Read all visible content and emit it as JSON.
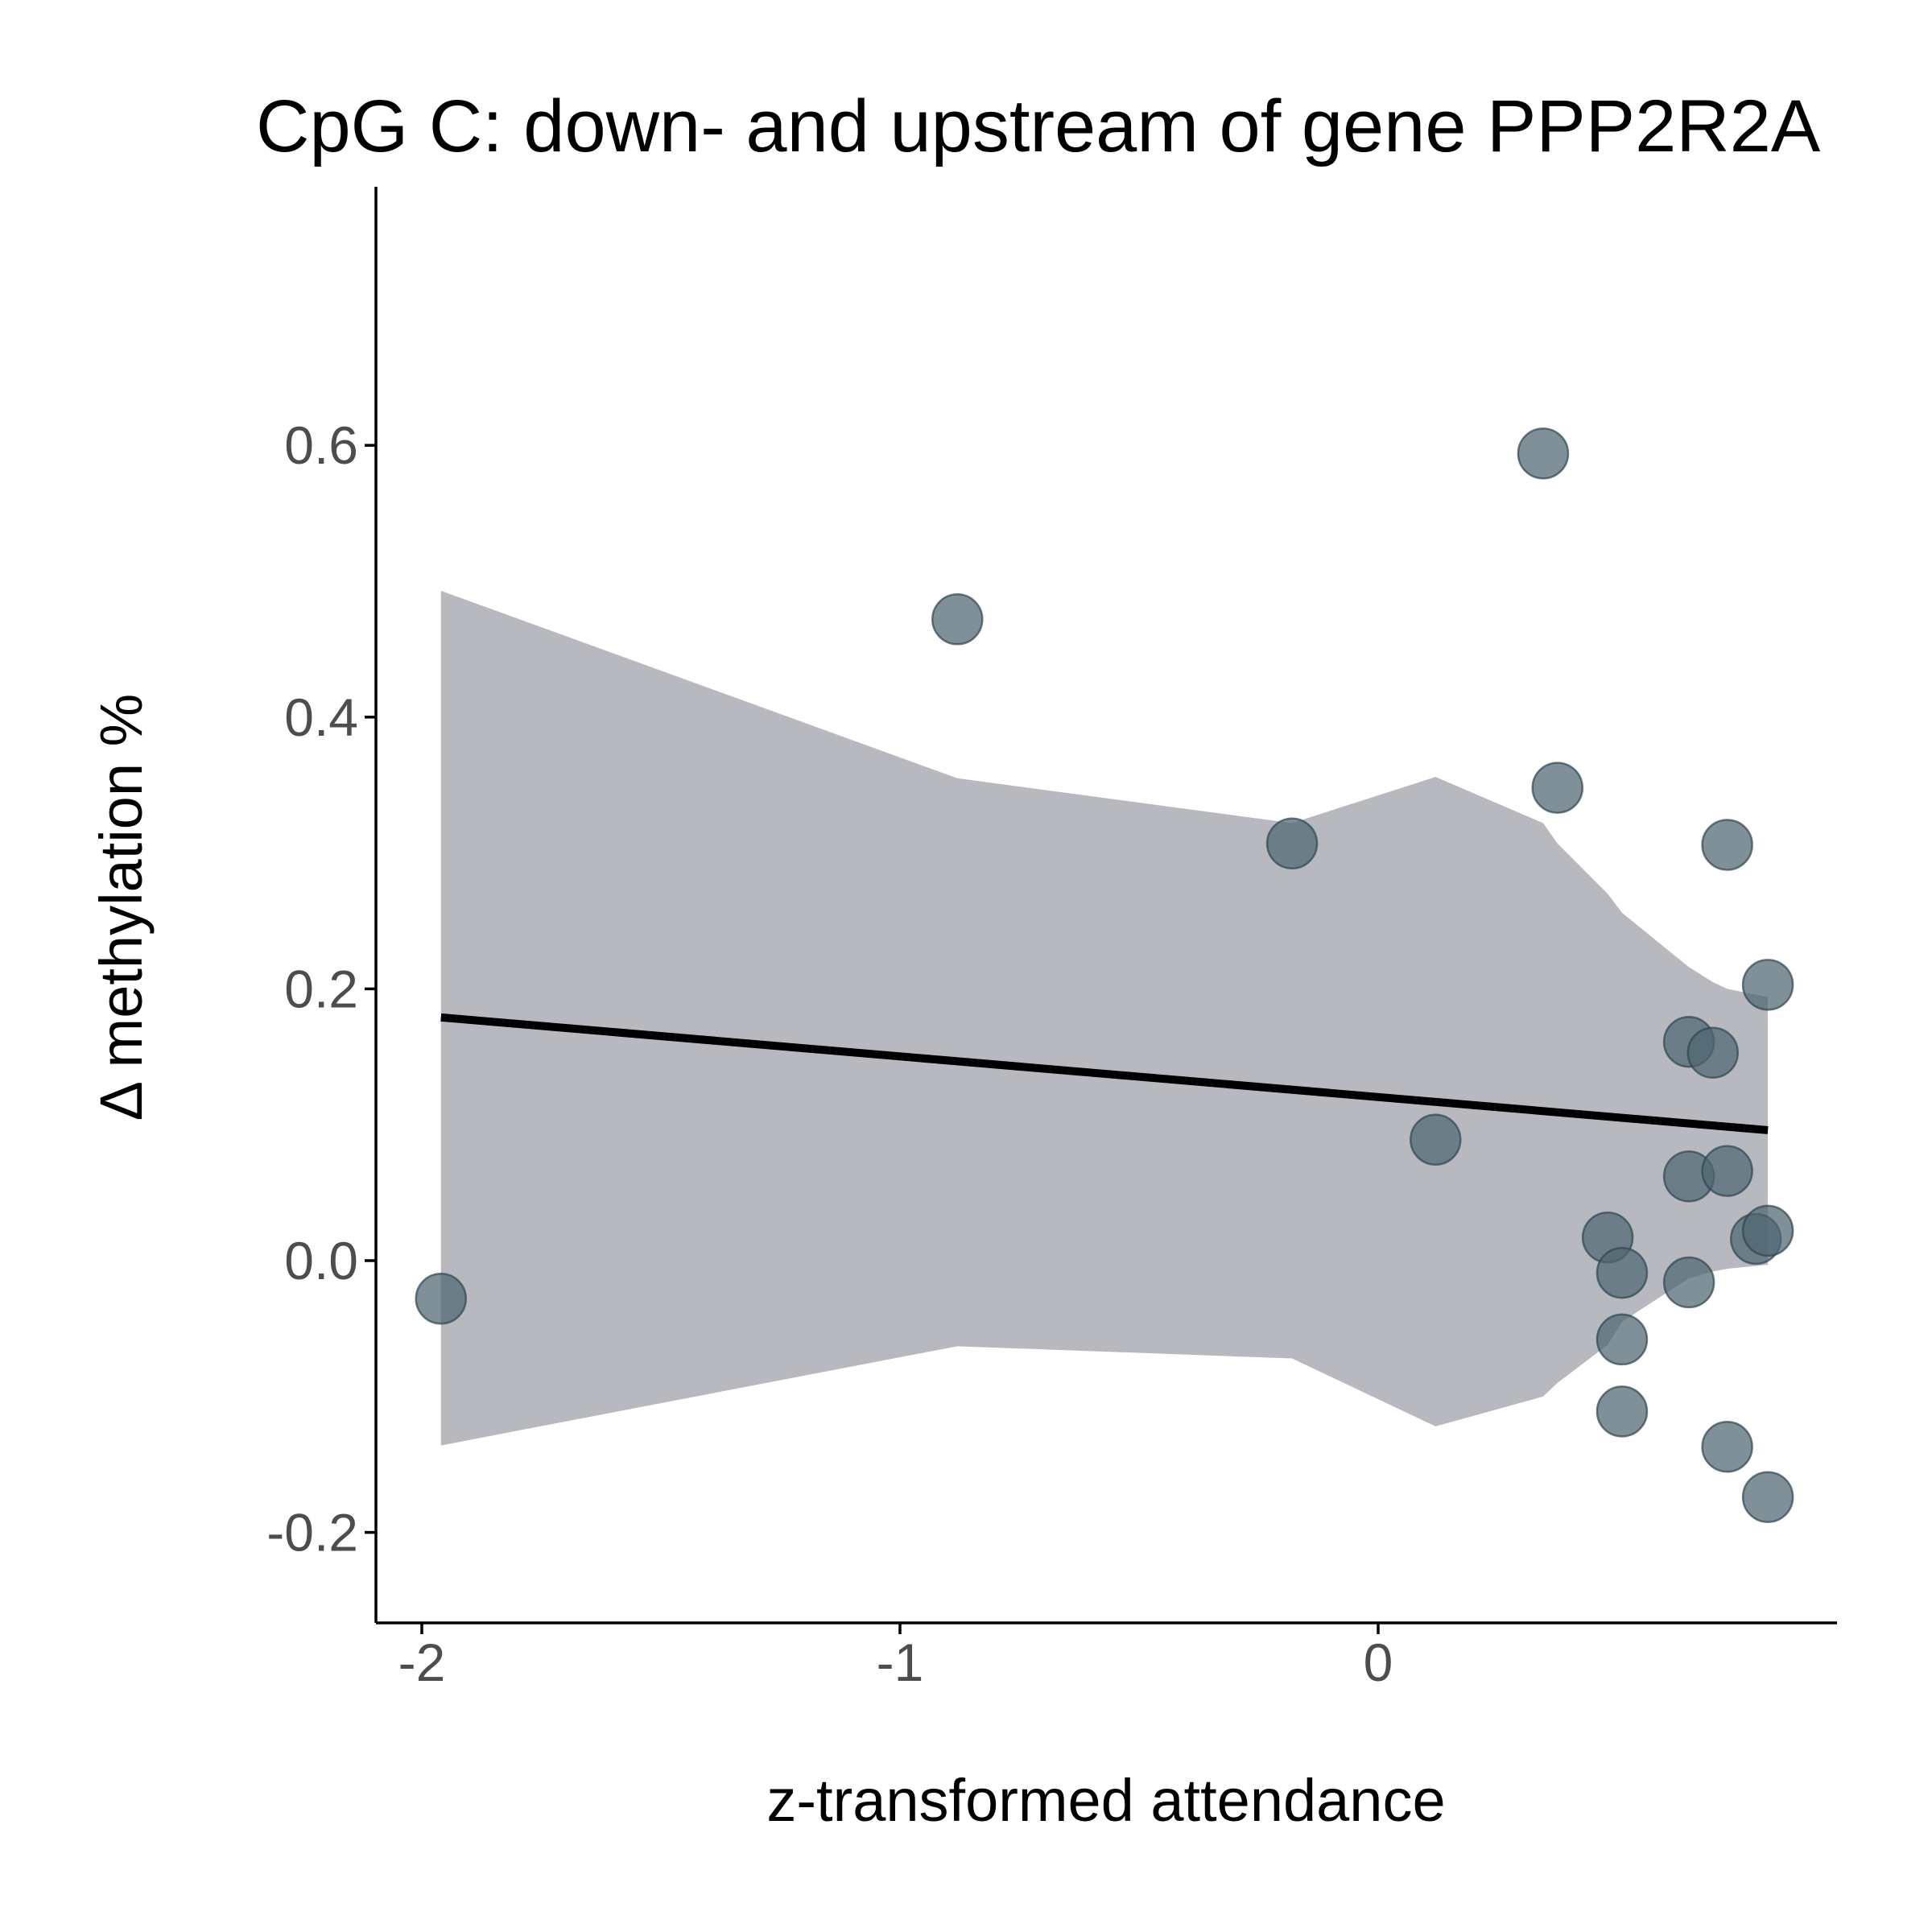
{
  "chart_data": {
    "type": "scatter",
    "title": "CpG C: down- and upstream of gene PPP2R2A",
    "xlabel": "z-transformed attendance",
    "ylabel": "Δ methylation %",
    "xlim": [
      -2.1,
      0.95
    ],
    "ylim": [
      -0.21,
      0.635
    ],
    "x_ticks": [
      -2,
      -1,
      0
    ],
    "x_tick_labels": [
      "-2",
      "-1",
      "0"
    ],
    "y_ticks": [
      -0.2,
      0.0,
      0.2,
      0.4,
      0.6
    ],
    "y_tick_labels": [
      "-0.2",
      "0.0",
      "0.2",
      "0.4",
      "0.6"
    ],
    "grid": false,
    "colors": {
      "points": "#4d6570",
      "point_edge": "#2f4450",
      "band": "#a0a2aa",
      "fit_line": "#000000",
      "axis": "#000000"
    },
    "series": [
      {
        "kind": "points",
        "points": [
          {
            "x": -1.96,
            "y": -0.028
          },
          {
            "x": -0.88,
            "y": 0.472
          },
          {
            "x": -0.18,
            "y": 0.307
          },
          {
            "x": 0.12,
            "y": 0.089
          },
          {
            "x": 0.345,
            "y": 0.594
          },
          {
            "x": 0.375,
            "y": 0.348
          },
          {
            "x": 0.48,
            "y": 0.017
          },
          {
            "x": 0.51,
            "y": -0.009
          },
          {
            "x": 0.51,
            "y": -0.058
          },
          {
            "x": 0.51,
            "y": -0.111
          },
          {
            "x": 0.65,
            "y": 0.161
          },
          {
            "x": 0.65,
            "y": 0.062
          },
          {
            "x": 0.65,
            "y": -0.016
          },
          {
            "x": 0.7,
            "y": 0.153
          },
          {
            "x": 0.73,
            "y": 0.306
          },
          {
            "x": 0.73,
            "y": 0.066
          },
          {
            "x": 0.73,
            "y": -0.137
          },
          {
            "x": 0.79,
            "y": 0.016
          },
          {
            "x": 0.815,
            "y": 0.203
          },
          {
            "x": 0.815,
            "y": 0.022
          },
          {
            "x": 0.815,
            "y": -0.174
          }
        ]
      },
      {
        "kind": "fit_line",
        "points": [
          {
            "x": -1.96,
            "y": 0.179
          },
          {
            "x": 0.815,
            "y": 0.096
          }
        ]
      },
      {
        "kind": "confidence_band",
        "upper": [
          {
            "x": -1.96,
            "y": 0.493
          },
          {
            "x": -0.88,
            "y": 0.355
          },
          {
            "x": -0.18,
            "y": 0.322
          },
          {
            "x": 0.12,
            "y": 0.356
          },
          {
            "x": 0.345,
            "y": 0.322
          },
          {
            "x": 0.375,
            "y": 0.307
          },
          {
            "x": 0.48,
            "y": 0.27
          },
          {
            "x": 0.51,
            "y": 0.256
          },
          {
            "x": 0.65,
            "y": 0.216
          },
          {
            "x": 0.7,
            "y": 0.205
          },
          {
            "x": 0.73,
            "y": 0.2
          },
          {
            "x": 0.815,
            "y": 0.194
          }
        ],
        "lower": [
          {
            "x": -1.96,
            "y": -0.136
          },
          {
            "x": -0.88,
            "y": -0.063
          },
          {
            "x": -0.18,
            "y": -0.072
          },
          {
            "x": 0.12,
            "y": -0.122
          },
          {
            "x": 0.345,
            "y": -0.1
          },
          {
            "x": 0.375,
            "y": -0.09
          },
          {
            "x": 0.48,
            "y": -0.062
          },
          {
            "x": 0.51,
            "y": -0.045
          },
          {
            "x": 0.65,
            "y": -0.013
          },
          {
            "x": 0.7,
            "y": -0.008
          },
          {
            "x": 0.73,
            "y": -0.006
          },
          {
            "x": 0.815,
            "y": -0.003
          }
        ]
      }
    ]
  }
}
